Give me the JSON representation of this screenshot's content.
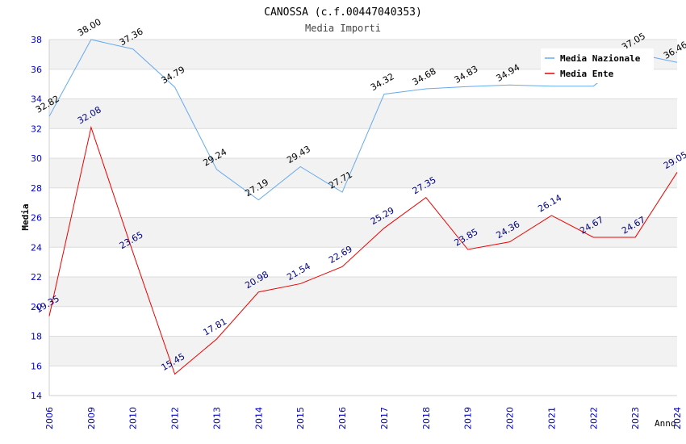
{
  "chart_data": {
    "type": "line",
    "title": "CANOSSA (c.f.00447040353)",
    "subtitle": "Media Importi",
    "xlabel": "Anno",
    "ylabel": "Media",
    "categories": [
      "2006",
      "2009",
      "2010",
      "2012",
      "2013",
      "2014",
      "2015",
      "2016",
      "2017",
      "2018",
      "2019",
      "2020",
      "2021",
      "2022",
      "2023",
      "2024"
    ],
    "ylim": [
      14,
      38
    ],
    "yticks": [
      14,
      16,
      18,
      20,
      22,
      24,
      26,
      28,
      30,
      32,
      34,
      36,
      38
    ],
    "grid": true,
    "legend_position": "top-right",
    "series": [
      {
        "name": "Media Nazionale",
        "color": "#66aaee",
        "label_color": "#000000",
        "values": [
          32.82,
          38.0,
          37.36,
          34.79,
          29.24,
          27.19,
          29.43,
          27.71,
          34.32,
          34.68,
          34.83,
          34.94,
          34.86,
          34.86,
          37.05,
          36.46
        ],
        "labels": [
          "32.82",
          "38.00",
          "37.36",
          "34.79",
          "29.24",
          "27.19",
          "29.43",
          "27.71",
          "34.32",
          "34.68",
          "34.83",
          "34.94",
          "",
          "",
          "37.05",
          "36.46"
        ]
      },
      {
        "name": "Media Ente",
        "color": "#ee0000",
        "label_color": "#000080",
        "values": [
          19.35,
          32.08,
          23.65,
          15.45,
          17.81,
          20.98,
          21.54,
          22.69,
          25.29,
          27.35,
          23.85,
          24.36,
          26.14,
          24.67,
          24.67,
          29.05
        ],
        "labels": [
          "19.35",
          "32.08",
          "23.65",
          "15.45",
          "17.81",
          "20.98",
          "21.54",
          "22.69",
          "25.29",
          "27.35",
          "23.85",
          "24.36",
          "26.14",
          "24.67",
          "24.67",
          "29.05"
        ]
      }
    ]
  }
}
